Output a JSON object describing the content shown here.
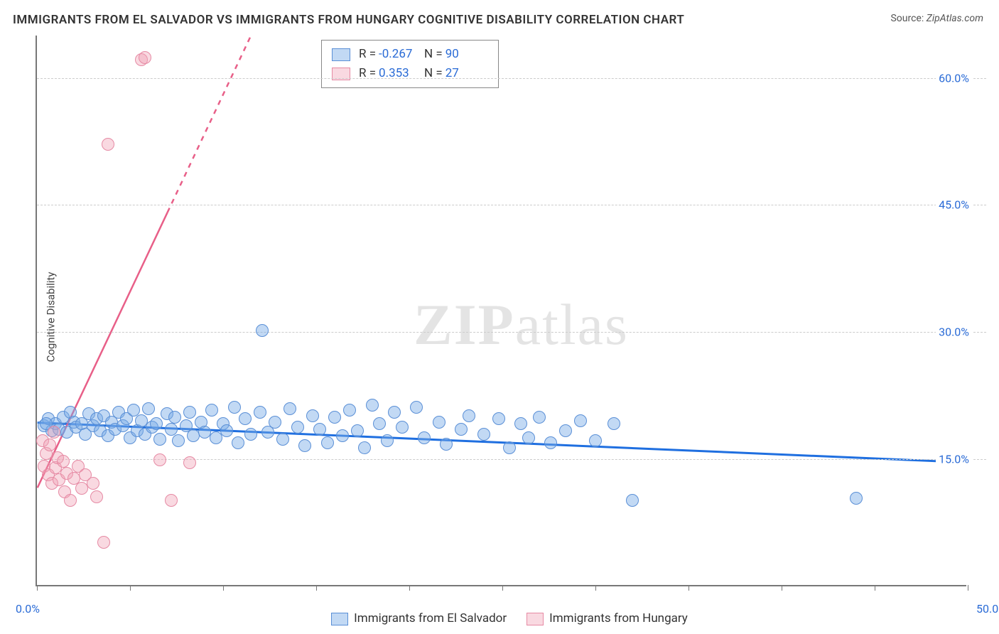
{
  "title": "IMMIGRANTS FROM EL SALVADOR VS IMMIGRANTS FROM HUNGARY COGNITIVE DISABILITY CORRELATION CHART",
  "source_label": "Source:",
  "source_value": "ZipAtlas.com",
  "ylabel": "Cognitive Disability",
  "watermark": "ZIPatlas",
  "chart": {
    "type": "scatter",
    "xlim": [
      0,
      50
    ],
    "ylim": [
      0,
      65
    ],
    "x_ticks": [
      0,
      5,
      10,
      15,
      20,
      25,
      30,
      35,
      40,
      45,
      50
    ],
    "y_gridlines": [
      15,
      30,
      45,
      60
    ],
    "x_labels": [
      {
        "v": 0.0,
        "t": "0.0%"
      },
      {
        "v": 50.0,
        "t": "50.0%"
      }
    ],
    "y_labels": [
      {
        "v": 15.0,
        "t": "15.0%"
      },
      {
        "v": 30.0,
        "t": "30.0%"
      },
      {
        "v": 45.0,
        "t": "45.0%"
      },
      {
        "v": 60.0,
        "t": "60.0%"
      }
    ],
    "grid_color": "#cccccc",
    "axis_color": "#777777",
    "background_color": "#ffffff",
    "marker_radius": 9,
    "series": [
      {
        "key": "a",
        "name": "Immigrants from El Salvador",
        "fill": "rgba(120,170,230,0.45)",
        "stroke": "#5a8fd6",
        "R": "-0.267",
        "N": "90",
        "regression": {
          "x1": 0,
          "y1": 19.2,
          "x2": 50,
          "y2": 14.5,
          "color": "#1f6fe0",
          "width": 3,
          "dash": "none"
        },
        "points": [
          [
            0.4,
            18.8
          ],
          [
            0.6,
            19.6
          ],
          [
            0.8,
            18.2
          ],
          [
            1.0,
            19.0
          ],
          [
            1.2,
            18.4
          ],
          [
            1.4,
            19.8
          ],
          [
            1.6,
            18.0
          ],
          [
            1.8,
            20.4
          ],
          [
            2.0,
            19.2
          ],
          [
            2.1,
            18.6
          ],
          [
            2.4,
            19.0
          ],
          [
            2.6,
            17.8
          ],
          [
            2.8,
            20.2
          ],
          [
            3.0,
            18.8
          ],
          [
            3.2,
            19.6
          ],
          [
            3.4,
            18.2
          ],
          [
            3.6,
            20.0
          ],
          [
            3.8,
            17.6
          ],
          [
            4.0,
            19.2
          ],
          [
            4.2,
            18.4
          ],
          [
            4.4,
            20.4
          ],
          [
            4.6,
            18.8
          ],
          [
            4.8,
            19.6
          ],
          [
            5.0,
            17.4
          ],
          [
            5.2,
            20.6
          ],
          [
            5.4,
            18.2
          ],
          [
            5.6,
            19.4
          ],
          [
            5.8,
            17.8
          ],
          [
            6.0,
            20.8
          ],
          [
            6.2,
            18.6
          ],
          [
            6.4,
            19.0
          ],
          [
            6.6,
            17.2
          ],
          [
            7.0,
            20.2
          ],
          [
            7.2,
            18.4
          ],
          [
            7.4,
            19.8
          ],
          [
            7.6,
            17.0
          ],
          [
            8.0,
            18.8
          ],
          [
            8.2,
            20.4
          ],
          [
            8.4,
            17.6
          ],
          [
            8.8,
            19.2
          ],
          [
            9.0,
            18.0
          ],
          [
            9.4,
            20.6
          ],
          [
            9.6,
            17.4
          ],
          [
            10.0,
            19.0
          ],
          [
            10.2,
            18.2
          ],
          [
            10.6,
            21.0
          ],
          [
            10.8,
            16.8
          ],
          [
            11.2,
            19.6
          ],
          [
            11.5,
            17.8
          ],
          [
            12.0,
            20.4
          ],
          [
            12.1,
            30.0
          ],
          [
            12.4,
            18.0
          ],
          [
            12.8,
            19.2
          ],
          [
            13.2,
            17.2
          ],
          [
            13.6,
            20.8
          ],
          [
            14.0,
            18.6
          ],
          [
            14.4,
            16.4
          ],
          [
            14.8,
            20.0
          ],
          [
            15.2,
            18.4
          ],
          [
            15.6,
            16.8
          ],
          [
            16.0,
            19.8
          ],
          [
            16.4,
            17.6
          ],
          [
            16.8,
            20.6
          ],
          [
            17.2,
            18.2
          ],
          [
            17.6,
            16.2
          ],
          [
            18.0,
            21.2
          ],
          [
            18.4,
            19.0
          ],
          [
            18.8,
            17.0
          ],
          [
            19.2,
            20.4
          ],
          [
            19.6,
            18.6
          ],
          [
            20.4,
            21.0
          ],
          [
            20.8,
            17.4
          ],
          [
            21.6,
            19.2
          ],
          [
            22.0,
            16.6
          ],
          [
            22.8,
            18.4
          ],
          [
            23.2,
            20.0
          ],
          [
            24.0,
            17.8
          ],
          [
            24.8,
            19.6
          ],
          [
            25.4,
            16.2
          ],
          [
            26.0,
            19.0
          ],
          [
            26.4,
            17.4
          ],
          [
            27.0,
            19.8
          ],
          [
            27.6,
            16.8
          ],
          [
            28.4,
            18.2
          ],
          [
            29.2,
            19.4
          ],
          [
            30.0,
            17.0
          ],
          [
            31.0,
            19.0
          ],
          [
            32.0,
            10.0
          ],
          [
            44.0,
            10.2
          ],
          [
            0.5,
            19.0
          ]
        ]
      },
      {
        "key": "b",
        "name": "Immigrants from Hungary",
        "fill": "rgba(240,160,180,0.40)",
        "stroke": "#e68aa4",
        "R": "0.353",
        "N": "27",
        "regression": {
          "x1": 0,
          "y1": 11.5,
          "x2": 11.5,
          "y2": 65,
          "color": "#e85f88",
          "width": 2.5,
          "solid_until_x": 7.0
        },
        "points": [
          [
            0.3,
            17.0
          ],
          [
            0.4,
            14.0
          ],
          [
            0.5,
            15.5
          ],
          [
            0.6,
            13.0
          ],
          [
            0.7,
            16.5
          ],
          [
            0.8,
            12.0
          ],
          [
            0.9,
            18.0
          ],
          [
            1.0,
            13.8
          ],
          [
            1.1,
            15.0
          ],
          [
            1.2,
            12.4
          ],
          [
            1.4,
            14.6
          ],
          [
            1.5,
            11.0
          ],
          [
            1.6,
            13.2
          ],
          [
            1.8,
            10.0
          ],
          [
            2.0,
            12.6
          ],
          [
            2.2,
            14.0
          ],
          [
            2.4,
            11.4
          ],
          [
            2.6,
            13.0
          ],
          [
            3.0,
            12.0
          ],
          [
            3.2,
            10.4
          ],
          [
            3.6,
            5.0
          ],
          [
            3.8,
            52.0
          ],
          [
            5.6,
            62.0
          ],
          [
            5.8,
            62.2
          ],
          [
            6.6,
            14.8
          ],
          [
            7.2,
            10.0
          ],
          [
            8.2,
            14.4
          ]
        ]
      }
    ],
    "stats_legend": {
      "R_label": "R =",
      "N_label": "N ="
    },
    "title_fontsize": 17,
    "label_fontsize": 15,
    "tick_color": "#2a6bd6"
  }
}
